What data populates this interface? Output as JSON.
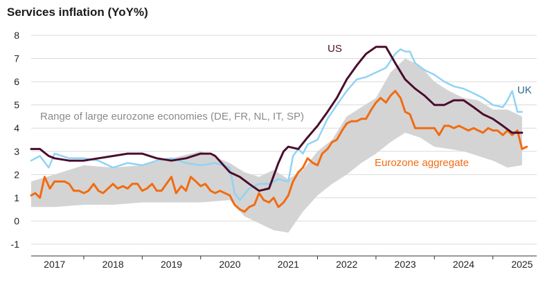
{
  "chart_data": {
    "type": "line",
    "title": "Services inflation (YoY%)",
    "ylim": [
      -1,
      8
    ],
    "xlim": [
      2016.6,
      2025.25
    ],
    "yticks": [
      -1,
      0,
      1,
      2,
      3,
      4,
      5,
      6,
      7,
      8
    ],
    "xticks": [
      2017,
      2018,
      2019,
      2020,
      2021,
      2022,
      2023,
      2024,
      2025
    ],
    "grid": true,
    "colors": {
      "US": "#4a0c2c",
      "UK": "#8fd3f4",
      "Eurozone aggregate": "#f26b10",
      "Range": "#d4d4d4"
    },
    "annotations": {
      "us": "US",
      "uk": "UK",
      "ez": "Eurozone aggregate",
      "range": "Range of large eurozone economies (DE, FR, NL, IT, SP)"
    },
    "band": {
      "name": "Range of large eurozone economies (DE, FR, NL, IT, SP)",
      "x": [
        2016.6,
        2017.0,
        2017.5,
        2018.0,
        2018.5,
        2019.0,
        2019.5,
        2020.0,
        2020.25,
        2020.5,
        2020.75,
        2021.0,
        2021.25,
        2021.5,
        2021.75,
        2022.0,
        2022.25,
        2022.5,
        2022.75,
        2023.0,
        2023.25,
        2023.5,
        2023.75,
        2024.0,
        2024.25,
        2024.5,
        2024.75,
        2025.0
      ],
      "low": [
        0.6,
        0.6,
        0.7,
        0.7,
        0.8,
        0.8,
        0.8,
        0.9,
        0.2,
        -0.1,
        -0.4,
        -0.5,
        0.4,
        1.1,
        1.6,
        2.0,
        2.5,
        2.9,
        3.4,
        3.8,
        3.6,
        3.2,
        3.1,
        3.0,
        2.8,
        2.6,
        2.3,
        2.4
      ],
      "high": [
        1.7,
        2.0,
        2.4,
        2.3,
        2.4,
        2.7,
        3.0,
        2.5,
        2.1,
        1.9,
        2.2,
        1.8,
        2.2,
        3.0,
        3.5,
        4.5,
        4.9,
        5.3,
        6.4,
        7.0,
        6.7,
        6.0,
        5.6,
        5.3,
        5.2,
        4.8,
        4.8,
        4.5
      ]
    },
    "series": [
      {
        "name": "US",
        "x": [
          2016.6,
          2016.75,
          2016.9,
          2017.0,
          2017.25,
          2017.5,
          2017.75,
          2018.0,
          2018.25,
          2018.5,
          2018.75,
          2019.0,
          2019.25,
          2019.5,
          2019.67,
          2019.75,
          2020.0,
          2020.17,
          2020.33,
          2020.5,
          2020.67,
          2020.83,
          2020.92,
          2021.0,
          2021.17,
          2021.33,
          2021.5,
          2021.67,
          2021.83,
          2022.0,
          2022.17,
          2022.33,
          2022.5,
          2022.67,
          2022.83,
          2023.0,
          2023.17,
          2023.33,
          2023.5,
          2023.67,
          2023.83,
          2024.0,
          2024.17,
          2024.33,
          2024.5,
          2024.67,
          2024.83,
          2025.0
        ],
        "y": [
          3.1,
          3.1,
          2.8,
          2.7,
          2.6,
          2.6,
          2.7,
          2.8,
          2.9,
          2.9,
          2.7,
          2.6,
          2.7,
          2.9,
          2.9,
          2.8,
          2.1,
          1.9,
          1.6,
          1.3,
          1.4,
          2.5,
          3.0,
          3.2,
          3.1,
          3.6,
          4.1,
          4.7,
          5.3,
          6.1,
          6.7,
          7.2,
          7.5,
          7.5,
          6.8,
          6.1,
          5.7,
          5.4,
          5.0,
          5.0,
          5.2,
          5.2,
          4.9,
          4.6,
          4.4,
          4.1,
          3.8,
          3.8
        ]
      },
      {
        "name": "UK",
        "x": [
          2016.6,
          2016.75,
          2016.9,
          2017.0,
          2017.25,
          2017.5,
          2017.75,
          2018.0,
          2018.25,
          2018.5,
          2018.75,
          2019.0,
          2019.25,
          2019.5,
          2019.75,
          2020.0,
          2020.08,
          2020.17,
          2020.33,
          2020.5,
          2020.67,
          2020.83,
          2021.0,
          2021.08,
          2021.17,
          2021.25,
          2021.33,
          2021.5,
          2021.67,
          2021.83,
          2022.0,
          2022.17,
          2022.33,
          2022.5,
          2022.67,
          2022.83,
          2022.92,
          2023.0,
          2023.08,
          2023.17,
          2023.33,
          2023.5,
          2023.67,
          2023.83,
          2024.0,
          2024.17,
          2024.33,
          2024.5,
          2024.67,
          2024.75,
          2024.83,
          2024.92,
          2025.0
        ],
        "y": [
          2.6,
          2.8,
          2.3,
          2.9,
          2.7,
          2.7,
          2.6,
          2.3,
          2.5,
          2.4,
          2.6,
          2.7,
          2.5,
          2.4,
          2.5,
          2.3,
          1.2,
          0.9,
          1.4,
          1.6,
          1.6,
          1.8,
          1.7,
          2.8,
          3.1,
          2.9,
          3.3,
          3.5,
          4.4,
          5.0,
          5.6,
          6.1,
          6.2,
          6.4,
          6.6,
          7.2,
          7.4,
          7.3,
          7.3,
          6.8,
          6.5,
          6.3,
          6.0,
          5.8,
          5.7,
          5.5,
          5.3,
          5.0,
          4.9,
          5.2,
          5.6,
          4.7,
          4.7
        ]
      },
      {
        "name": "Eurozone aggregate",
        "x": [
          2016.6,
          2016.67,
          2016.75,
          2016.83,
          2016.92,
          2017.0,
          2017.17,
          2017.25,
          2017.33,
          2017.42,
          2017.5,
          2017.58,
          2017.67,
          2017.75,
          2017.83,
          2018.0,
          2018.08,
          2018.17,
          2018.25,
          2018.33,
          2018.42,
          2018.5,
          2018.58,
          2018.67,
          2018.75,
          2018.83,
          2019.0,
          2019.08,
          2019.17,
          2019.25,
          2019.33,
          2019.42,
          2019.5,
          2019.58,
          2019.67,
          2019.75,
          2019.83,
          2020.0,
          2020.08,
          2020.17,
          2020.25,
          2020.33,
          2020.42,
          2020.5,
          2020.58,
          2020.67,
          2020.75,
          2020.83,
          2020.92,
          2021.0,
          2021.08,
          2021.17,
          2021.25,
          2021.33,
          2021.42,
          2021.5,
          2021.58,
          2021.67,
          2021.75,
          2021.83,
          2021.92,
          2022.0,
          2022.08,
          2022.17,
          2022.25,
          2022.33,
          2022.42,
          2022.5,
          2022.58,
          2022.67,
          2022.75,
          2022.83,
          2022.92,
          2023.0,
          2023.08,
          2023.17,
          2023.25,
          2023.33,
          2023.42,
          2023.5,
          2023.58,
          2023.67,
          2023.75,
          2023.83,
          2023.92,
          2024.0,
          2024.08,
          2024.17,
          2024.25,
          2024.33,
          2024.42,
          2024.5,
          2024.58,
          2024.67,
          2024.75,
          2024.83,
          2024.92,
          2025.0,
          2025.08
        ],
        "y": [
          1.1,
          1.2,
          1.0,
          1.9,
          1.4,
          1.7,
          1.7,
          1.6,
          1.3,
          1.3,
          1.2,
          1.3,
          1.6,
          1.3,
          1.2,
          1.6,
          1.4,
          1.5,
          1.4,
          1.6,
          1.6,
          1.3,
          1.4,
          1.6,
          1.3,
          1.3,
          1.9,
          1.2,
          1.5,
          1.3,
          1.9,
          1.7,
          1.5,
          1.6,
          1.3,
          1.2,
          1.3,
          1.1,
          0.7,
          0.5,
          0.4,
          0.6,
          0.7,
          1.2,
          0.9,
          0.8,
          1.0,
          0.6,
          0.8,
          1.1,
          1.7,
          2.1,
          2.3,
          2.7,
          2.5,
          2.4,
          2.9,
          3.1,
          3.4,
          3.5,
          3.9,
          4.2,
          4.3,
          4.3,
          4.4,
          4.4,
          4.8,
          5.1,
          5.3,
          5.1,
          5.4,
          5.6,
          5.3,
          4.7,
          4.6,
          4.0,
          4.0,
          4.0,
          4.0,
          4.0,
          3.7,
          4.1,
          4.1,
          4.0,
          4.1,
          4.0,
          3.9,
          4.0,
          3.9,
          3.8,
          4.0,
          3.9,
          3.9,
          3.7,
          3.9,
          3.7,
          3.9,
          3.1,
          3.2
        ]
      }
    ]
  }
}
